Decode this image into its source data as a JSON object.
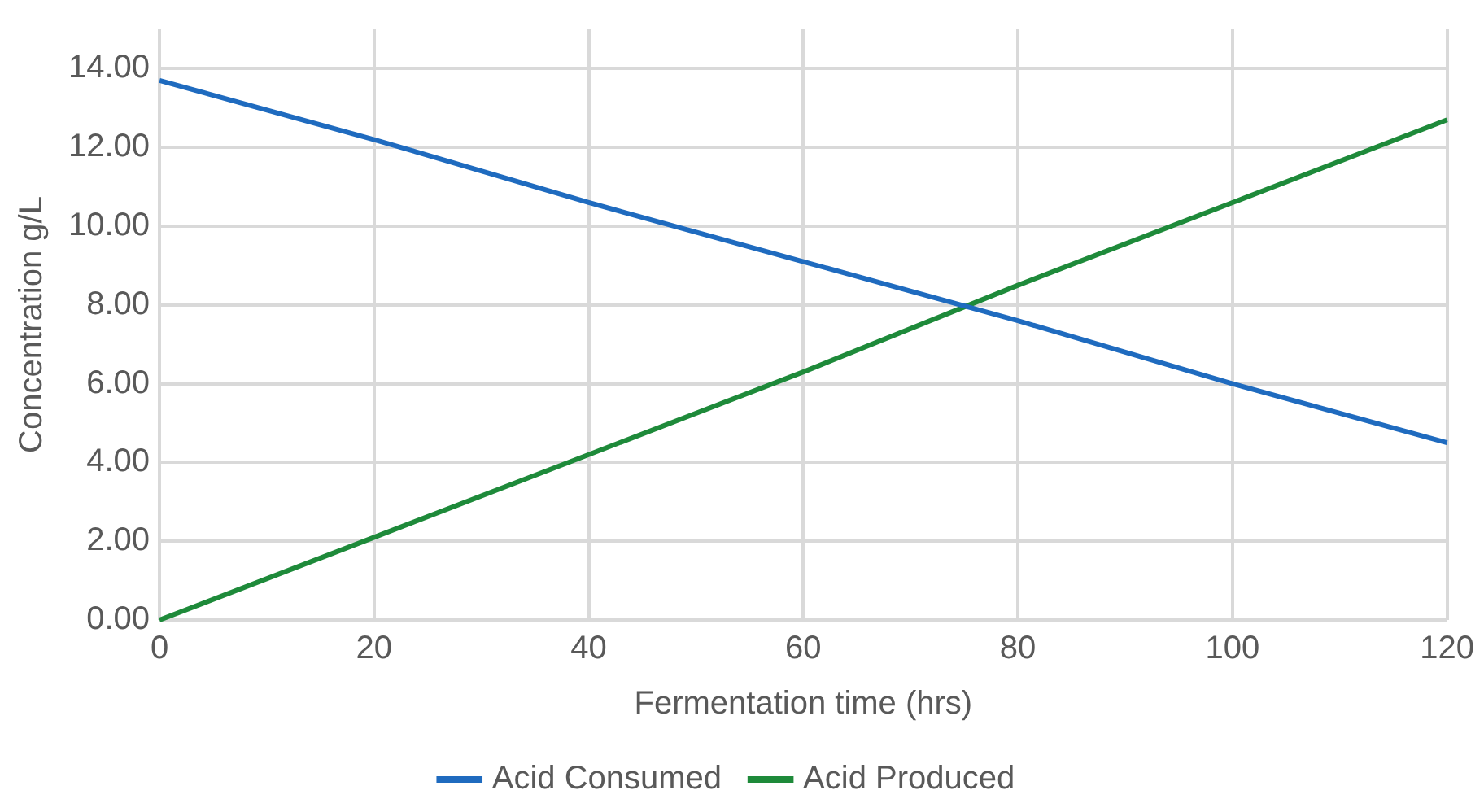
{
  "chart_data": {
    "type": "line",
    "xlabel": "Fermentation time (hrs)",
    "ylabel": "Concentration g/L",
    "series": [
      {
        "name": "Acid Consumed",
        "color": "#1f6bbf",
        "x": [
          0,
          20,
          40,
          60,
          80,
          100,
          120
        ],
        "values": [
          13.7,
          12.2,
          10.6,
          9.1,
          7.6,
          6.0,
          4.5
        ]
      },
      {
        "name": "Acid Produced",
        "color": "#1e8a3a",
        "x": [
          0,
          20,
          40,
          60,
          80,
          100,
          120
        ],
        "values": [
          0,
          2.1,
          4.2,
          6.3,
          8.5,
          10.6,
          12.7
        ]
      }
    ],
    "xlim": [
      0,
      120
    ],
    "xticks": [
      0,
      20,
      40,
      60,
      80,
      100,
      120
    ],
    "ylim": [
      0,
      15
    ],
    "yticks": [
      {
        "value": 0,
        "label": "0.00"
      },
      {
        "value": 2,
        "label": "2.00"
      },
      {
        "value": 4,
        "label": "4.00"
      },
      {
        "value": 6,
        "label": "6.00"
      },
      {
        "value": 8,
        "label": "8.00"
      },
      {
        "value": 10,
        "label": "10.00"
      },
      {
        "value": 12,
        "label": "12.00"
      },
      {
        "value": 14,
        "label": "14.00"
      }
    ],
    "grid": true,
    "legend": "bottom",
    "marker": "none",
    "line_style": "solid"
  }
}
